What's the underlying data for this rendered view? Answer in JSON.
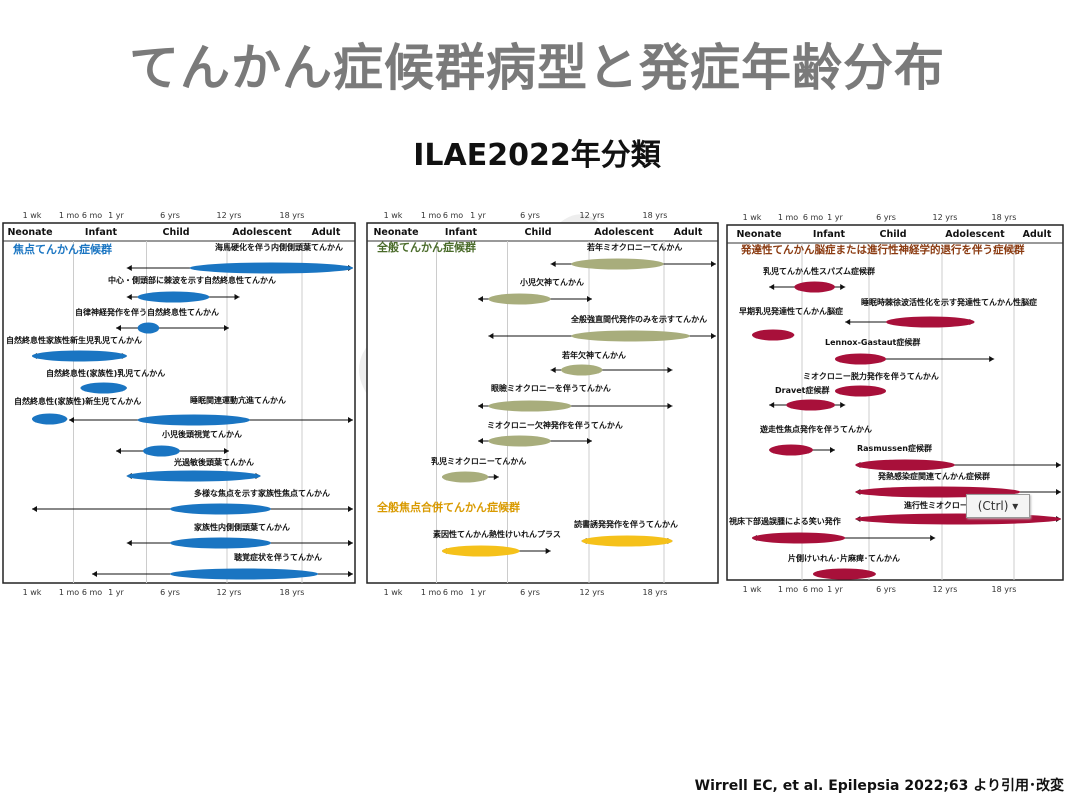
{
  "title": "てんかん症候群病型と発症年齢分布",
  "subtitle": "ILAE2022年分類",
  "citation": "Wirrell EC, et al. Epilepsia 2022;63 より引用･改変",
  "ctrl_badge": "(Ctrl) ▾",
  "watermark": "©osn",
  "age_ticks": [
    "1 wk",
    "1 mo",
    "6 mo",
    "1 yr",
    "6 yrs",
    "12 yrs",
    "18 yrs"
  ],
  "age_groups": [
    "Neonate",
    "Infant",
    "Child",
    "Adolescent",
    "Adult"
  ],
  "colors": {
    "focal": "#1a75c2",
    "generalized": "#a8ad7c",
    "combined": "#f5c11a",
    "developmental": "#a8103a"
  },
  "chart_data": [
    {
      "type": "range",
      "title": "焦点てんかん症候群",
      "syndromes": [
        {
          "name": "海馬硬化を伴う内側側頭葉てんかん",
          "typical": [
            8,
            25
          ],
          "range": [
            2,
            25
          ]
        },
        {
          "name": "中心・側頭部に棘波を示す自然終息性てんかん",
          "typical": [
            3,
            10
          ],
          "range": [
            2,
            13
          ]
        },
        {
          "name": "自律神経発作を伴う自然終息性てんかん",
          "typical": [
            3,
            5
          ],
          "range": [
            1,
            12
          ]
        },
        {
          "name": "自然終息性家族性新生児乳児てんかん",
          "typical": [
            -2,
            2
          ],
          "range": [
            -2,
            2
          ]
        },
        {
          "name": "自然終息性(家族性)乳児てんかん",
          "typical": [
            0.3,
            2
          ],
          "range": [
            0.3,
            2
          ]
        },
        {
          "name": "自然終息性(家族性)新生児てんかん",
          "typical": [
            -2,
            0
          ],
          "range": [
            -2,
            0
          ]
        },
        {
          "name": "睡眠関連運動亢進てんかん",
          "typical": [
            3,
            14
          ],
          "range": [
            0.1,
            25
          ]
        },
        {
          "name": "小児後頭視覚てんかん",
          "typical": [
            3.5,
            7
          ],
          "range": [
            1,
            12
          ]
        },
        {
          "name": "光過敏後頭葉てんかん",
          "typical": [
            2,
            15
          ],
          "range": [
            2,
            15
          ]
        },
        {
          "name": "多様な焦点を示す家族性焦点てんかん",
          "typical": [
            6,
            16
          ],
          "range": [
            -2,
            25
          ]
        },
        {
          "name": "家族性内側側頭葉てんかん",
          "typical": [
            6,
            16
          ],
          "range": [
            2,
            25
          ]
        },
        {
          "name": "聴覚症状を伴うてんかん",
          "typical": [
            6,
            21
          ],
          "range": [
            0.5,
            25
          ]
        }
      ]
    },
    {
      "type": "range",
      "title": "全般てんかん症候群",
      "syndromes": [
        {
          "name": "若年ミオクロニーてんかん",
          "typical": [
            10,
            19
          ],
          "range": [
            8,
            25
          ]
        },
        {
          "name": "小児欠神てんかん",
          "typical": [
            2,
            8
          ],
          "range": [
            1,
            12
          ]
        },
        {
          "name": "全般強直間代発作のみを示すてんかん",
          "typical": [
            10,
            22
          ],
          "range": [
            2,
            25
          ]
        },
        {
          "name": "若年欠神てんかん",
          "typical": [
            9,
            13
          ],
          "range": [
            8,
            20
          ]
        },
        {
          "name": "眼瞼ミオクロニーを伴うてんかん",
          "typical": [
            2,
            10
          ],
          "range": [
            1,
            20
          ]
        },
        {
          "name": "ミオクロニー欠神発作を伴うてんかん",
          "typical": [
            2,
            8
          ],
          "range": [
            1,
            12
          ]
        },
        {
          "name": "乳児ミオクロニーてんかん",
          "typical": [
            0.3,
            2
          ],
          "range": [
            0.3,
            3
          ]
        }
      ]
    },
    {
      "type": "range",
      "title": "全般焦点合併てんかん症候群",
      "syndromes": [
        {
          "name": "素因性てんかん熱性けいれんプラス",
          "typical": [
            0.3,
            5
          ],
          "range": [
            0.3,
            8
          ]
        },
        {
          "name": "読書誘発発作を伴うてんかん",
          "typical": [
            11,
            20
          ],
          "range": [
            11,
            20
          ]
        }
      ]
    },
    {
      "type": "range",
      "title": "発達性てんかん脳症または進行性神経学的退行を伴う症候群",
      "syndromes": [
        {
          "name": "乳児てんかん性スパズム症候群",
          "typical": [
            0.2,
            1
          ],
          "range": [
            -1,
            2
          ]
        },
        {
          "name": "睡眠時棘徐波活性化を示す発達性てんかん性脳症",
          "typical": [
            6,
            15
          ],
          "range": [
            2,
            15
          ]
        },
        {
          "name": "早期乳児発達性てんかん脳症",
          "typical": [
            -2,
            0.2
          ],
          "range": [
            -2,
            0.2
          ]
        },
        {
          "name": "Lennox-Gastaut症候群",
          "typical": [
            1,
            6
          ],
          "range": [
            1,
            17
          ]
        },
        {
          "name": "ミオクロニー脱力発作を伴うてんかん",
          "typical": [
            1,
            6
          ],
          "range": [
            1,
            6
          ]
        },
        {
          "name": "Dravet症候群",
          "typical": [
            0,
            1
          ],
          "range": [
            -1,
            2
          ]
        },
        {
          "name": "遊走性焦点発作を伴うてんかん",
          "typical": [
            -1,
            0.5
          ],
          "range": [
            -1,
            1
          ]
        },
        {
          "name": "Rasmussen症候群",
          "typical": [
            3,
            13
          ],
          "range": [
            3,
            25
          ]
        },
        {
          "name": "発熱感染症関連てんかん症候群",
          "typical": [
            3,
            20
          ],
          "range": [
            3,
            25
          ]
        },
        {
          "name": "進行性ミオクローヌスてんかん",
          "typical": [
            3,
            25
          ],
          "range": [
            3,
            25
          ]
        },
        {
          "name": "視床下部過誤腫による笑い発作",
          "typical": [
            -2,
            2
          ],
          "range": [
            -2,
            11
          ]
        },
        {
          "name": "片側けいれん･片麻痺･てんかん",
          "typical": [
            0.5,
            5
          ],
          "range": [
            0.5,
            5
          ]
        }
      ]
    }
  ]
}
